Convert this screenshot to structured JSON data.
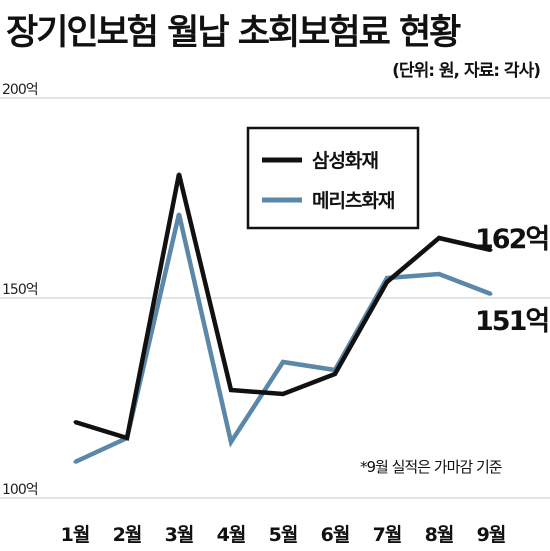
{
  "title": "장기인보험 월납 초회보험료 현황",
  "source": "(단위: 원, 자료: 각사)",
  "note": "*9월 실적은 가마감 기준",
  "chart_data": {
    "type": "line",
    "categories": [
      "1월",
      "2월",
      "3월",
      "4월",
      "5월",
      "6월",
      "7월",
      "8월",
      "9월"
    ],
    "series": [
      {
        "name": "삼성화재",
        "color": "#111111",
        "values": [
          119,
          115,
          181,
          127,
          126,
          131,
          154,
          165,
          162
        ]
      },
      {
        "name": "메리츠화재",
        "color": "#5b87a8",
        "values": [
          109,
          115,
          171,
          114,
          134,
          132,
          155,
          156,
          151
        ]
      }
    ],
    "ylim": [
      100,
      200
    ],
    "yticks": [
      {
        "value": 200,
        "label": "200억"
      },
      {
        "value": 150,
        "label": "150억"
      },
      {
        "value": 100,
        "label": "100억"
      }
    ],
    "end_labels": [
      {
        "series": "삼성화재",
        "text": "162억"
      },
      {
        "series": "메리츠화재",
        "text": "151억"
      }
    ],
    "grid": true,
    "legend": "top-center"
  }
}
